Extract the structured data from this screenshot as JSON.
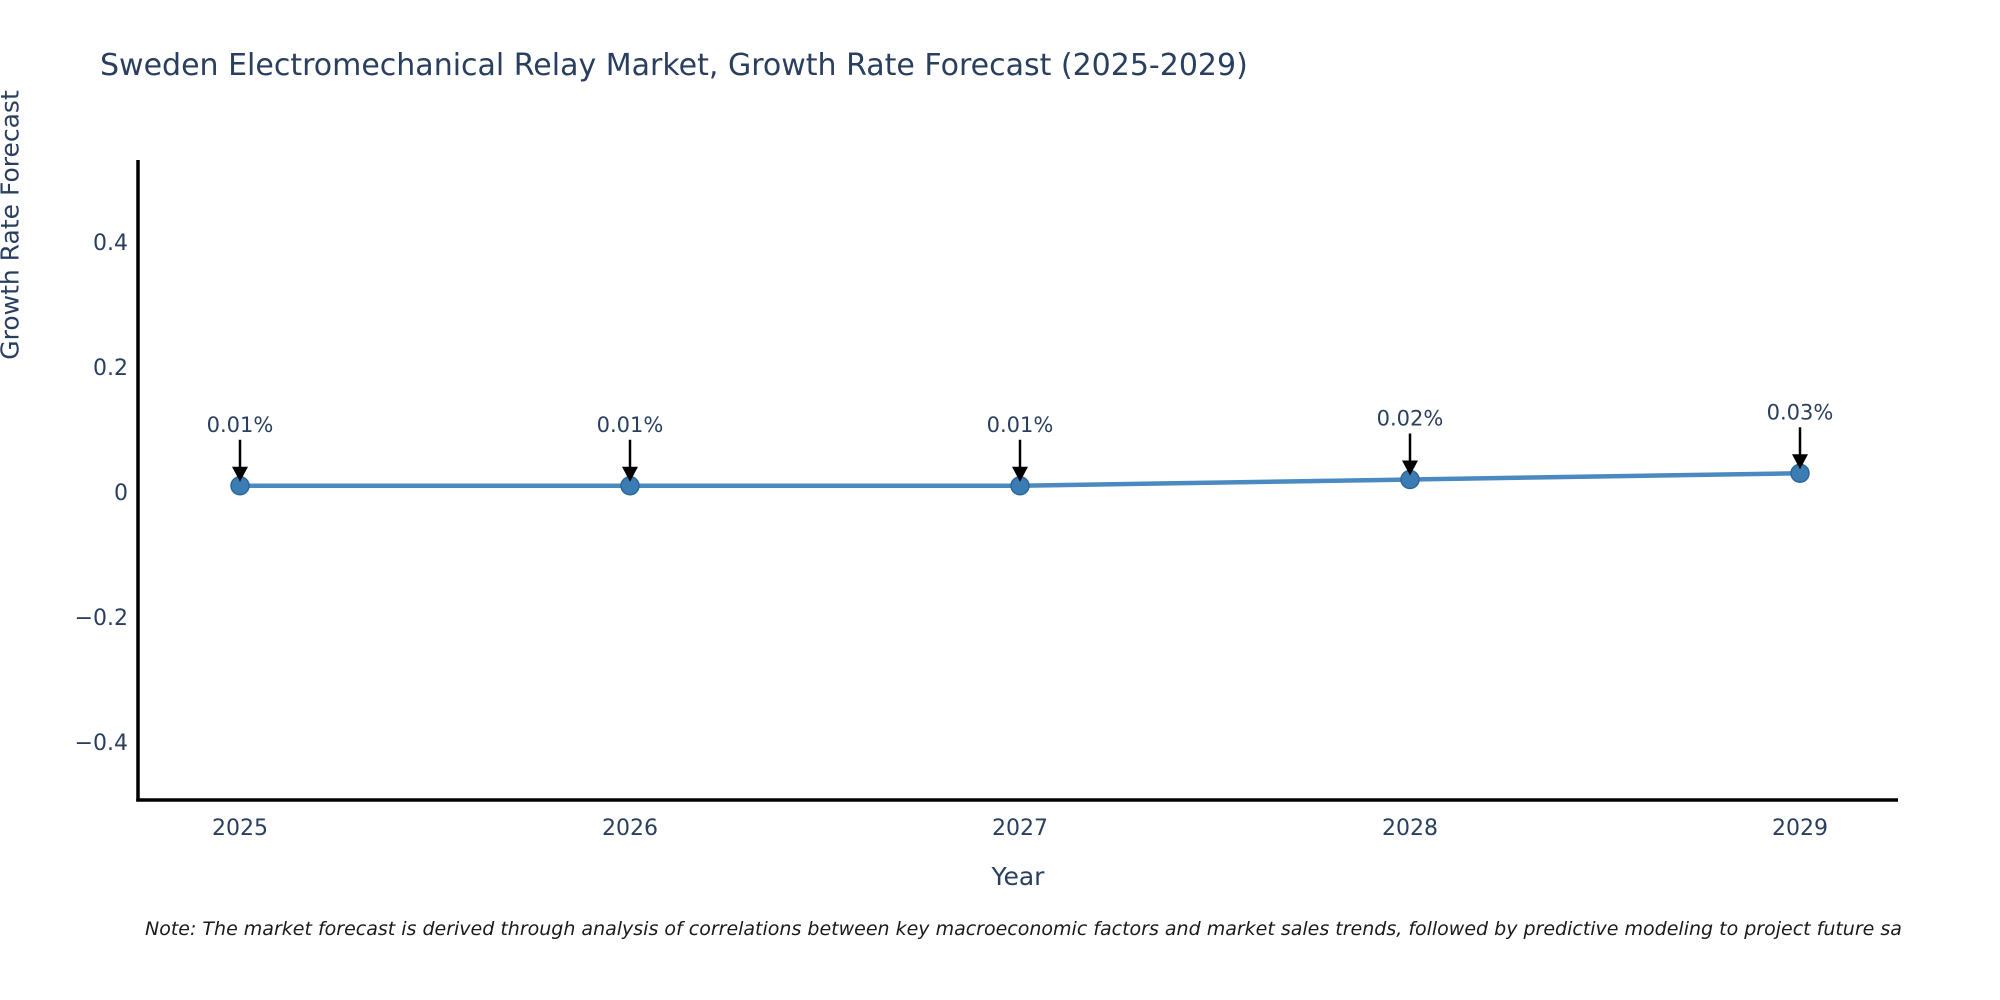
{
  "page": {
    "background": "#ffffff"
  },
  "chart_data": {
    "type": "line",
    "title": "Sweden Electromechanical Relay Market, Growth Rate Forecast (2025-2029)",
    "xlabel": "Year",
    "ylabel": "Growth Rate Forecast",
    "categories": [
      "2025",
      "2026",
      "2027",
      "2028",
      "2029"
    ],
    "series": [
      {
        "name": "Growth Rate Forecast",
        "values": [
          0.01,
          0.01,
          0.01,
          0.02,
          0.03
        ]
      }
    ],
    "point_labels": [
      "0.01%",
      "0.01%",
      "0.01%",
      "0.02%",
      "0.03%"
    ],
    "yticks": [
      0.4,
      0.2,
      0,
      -0.2,
      -0.4
    ],
    "ytick_labels": [
      "0.4",
      "0.2",
      "0",
      "−0.2",
      "−0.4"
    ],
    "ylim": [
      -0.49,
      0.52
    ],
    "grid": false,
    "legend": "none",
    "line_color": "#4a8ac0",
    "marker_color": "#3c7cb5",
    "marker_edge_color": "#2f6699",
    "axis_color": "#000000",
    "text_color": "#2a3f5f",
    "annotation_arrow_color": "#000000"
  },
  "note": {
    "text": "Note: The market forecast is derived through analysis of correlations between key macroeconomic factors and market sales trends, followed by predictive modeling to project future sa"
  }
}
